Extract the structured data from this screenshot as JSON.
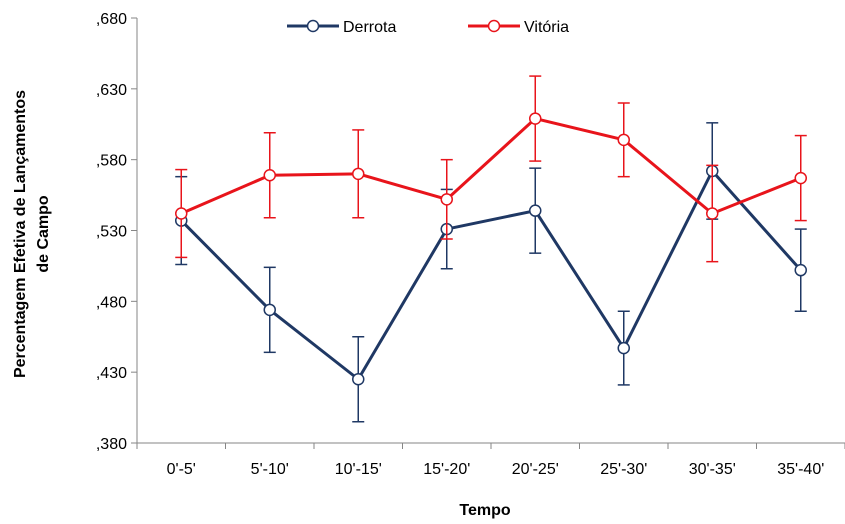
{
  "chart_data": {
    "type": "line",
    "title": "",
    "xlabel": "Tempo",
    "ylabel_lines": [
      "Percentagem Efetiva de Lançamentos",
      "de Campo"
    ],
    "categories": [
      "0'-5'",
      "5'-10'",
      "10'-15'",
      "15'-20'",
      "20'-25'",
      "25'-30'",
      "30'-35'",
      "35'-40'"
    ],
    "ylim": [
      0.38,
      0.68
    ],
    "yticks": [
      0.38,
      0.43,
      0.48,
      0.53,
      0.58,
      0.63,
      0.68
    ],
    "ytick_labels": [
      ",380",
      ",430",
      ",480",
      ",530",
      ",580",
      ",630",
      ",680"
    ],
    "grid": false,
    "legend_position": "top-center",
    "series": [
      {
        "name": "Derrota",
        "color": "#1f3864",
        "values": [
          0.537,
          0.474,
          0.425,
          0.531,
          0.544,
          0.447,
          0.572,
          0.502
        ],
        "error": [
          0.031,
          0.03,
          0.03,
          0.028,
          0.03,
          0.026,
          0.034,
          0.029
        ]
      },
      {
        "name": "Vitória",
        "color": "#e8141b",
        "values": [
          0.542,
          0.569,
          0.57,
          0.552,
          0.609,
          0.594,
          0.542,
          0.567
        ],
        "error": [
          0.031,
          0.03,
          0.031,
          0.028,
          0.03,
          0.026,
          0.034,
          0.03
        ]
      }
    ]
  }
}
